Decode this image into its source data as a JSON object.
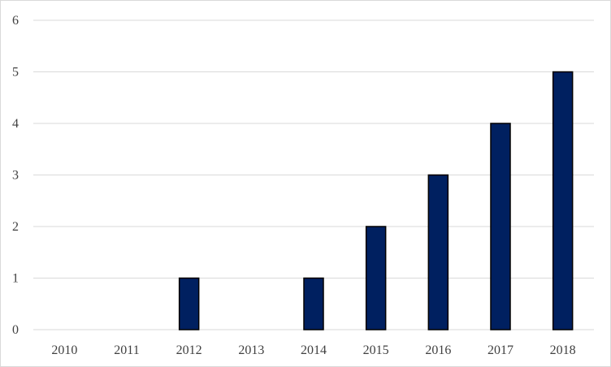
{
  "chart_data": {
    "type": "bar",
    "title": "",
    "xlabel": "",
    "ylabel": "",
    "categories": [
      "2010",
      "2011",
      "2012",
      "2013",
      "2014",
      "2015",
      "2016",
      "2017",
      "2018"
    ],
    "values": [
      0,
      0,
      1,
      0,
      1,
      2,
      3,
      4,
      5
    ],
    "ylim": [
      0,
      6
    ],
    "yticks": [
      "0",
      "1",
      "2",
      "3",
      "4",
      "5",
      "6"
    ],
    "grid": true,
    "legend": "none",
    "colors": {
      "bar": "#002060",
      "bar_outline": "#000000",
      "grid": "#d9d9d9",
      "text": "#404040"
    }
  }
}
